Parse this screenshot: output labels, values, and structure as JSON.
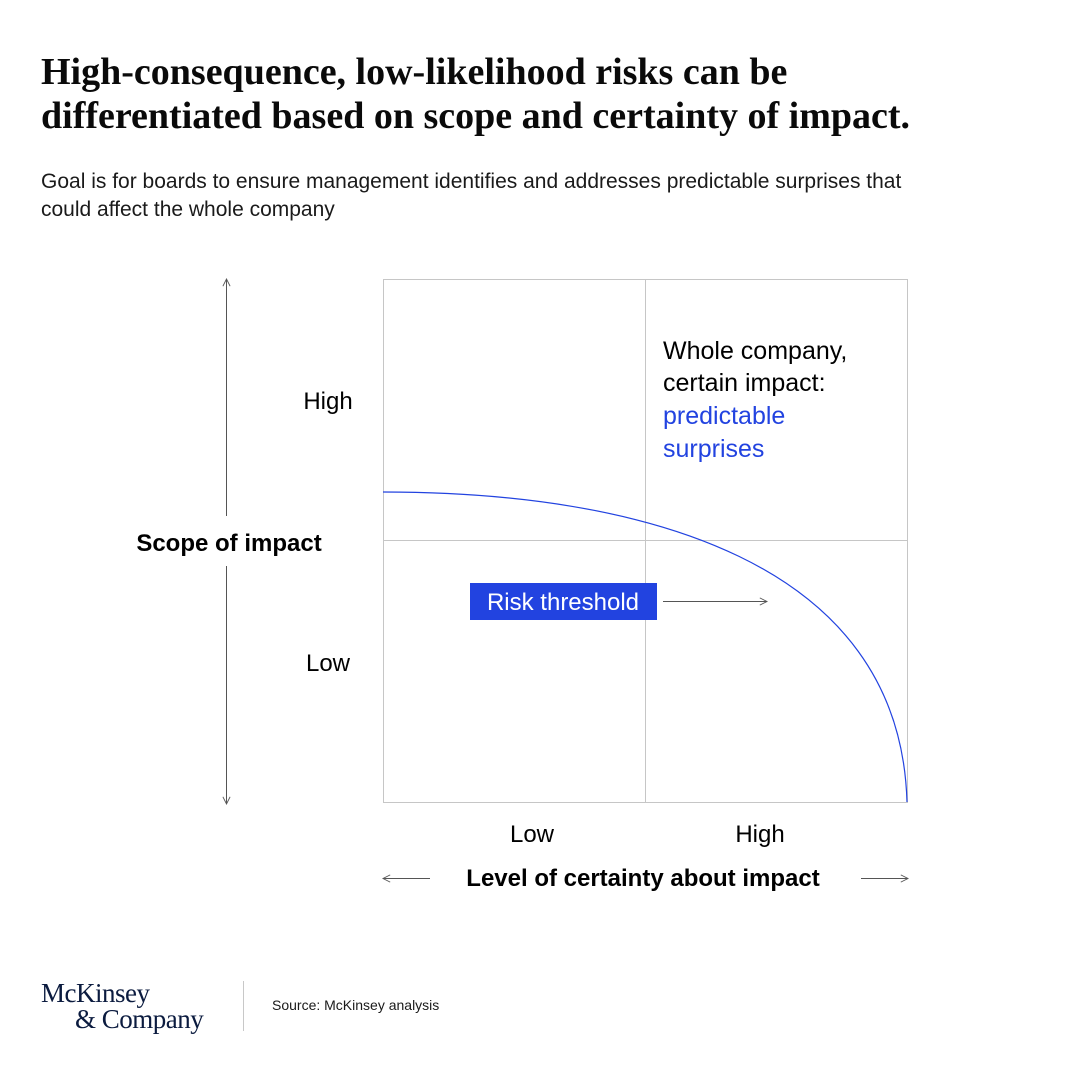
{
  "title": {
    "line1": "High-consequence, low-likelihood risks can be",
    "line2": "differentiated based on scope and certainty of impact."
  },
  "subtitle": {
    "line1": "Goal is for boards to ensure management identifies and addresses predictable surprises that",
    "line2": "could affect the whole company"
  },
  "chart_data": {
    "type": "quadrant-matrix",
    "y_axis": {
      "label": "Scope of impact",
      "levels": [
        "High",
        "Low"
      ]
    },
    "x_axis": {
      "label": "Level of certainty about impact",
      "levels": [
        "Low",
        "High"
      ]
    },
    "quadrant_label": {
      "line1": "Whole company,",
      "line2": "certain impact:",
      "highlight_line1": "predictable",
      "highlight_line2": "surprises"
    },
    "threshold": {
      "label": "Risk threshold",
      "shape": "concave curve falling from left edge to bottom-right corner"
    }
  },
  "colors": {
    "accent": "#2243e0",
    "grid": "#c6c6c6",
    "axis": "#555555",
    "text": "#000000",
    "logo": "#0b1b3f"
  },
  "footer": {
    "logo_line1": "McKinsey",
    "logo_line2": "& Company",
    "source": "Source: McKinsey analysis"
  }
}
